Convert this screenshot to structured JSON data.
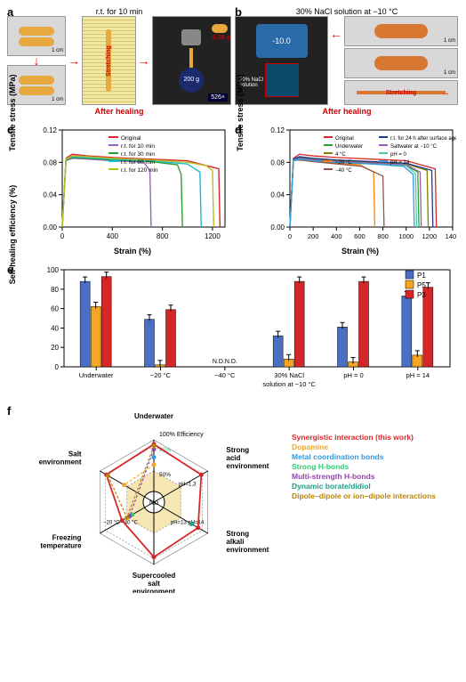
{
  "panelA": {
    "label": "a",
    "title": "r.t. for 10 min",
    "after": "After healing",
    "stretch": "Stretching",
    "weight": "200 g",
    "mass": "0.38 g",
    "ratio": "526×",
    "scale": "1 cm"
  },
  "panelB": {
    "label": "b",
    "title": "30% NaCl solution at −10 °C",
    "after": "After healing",
    "stretch": "Stretching",
    "display": "-10.0",
    "sol": "30% NaCl solution",
    "scale": "1 cm"
  },
  "panelC": {
    "label": "c",
    "ylabel": "Tensile stress (MPa)",
    "xlabel": "Strain (%)",
    "xlim": [
      0,
      1300
    ],
    "xticks": [
      0,
      400,
      800,
      1200
    ],
    "ylim": [
      0,
      0.12
    ],
    "yticks": [
      0.0,
      0.04,
      0.08,
      0.12
    ],
    "series": [
      {
        "name": "Original",
        "color": "#d62728",
        "x": [
          0,
          30,
          80,
          200,
          400,
          700,
          1000,
          1250,
          1260
        ],
        "y": [
          0,
          0.085,
          0.09,
          0.088,
          0.086,
          0.084,
          0.082,
          0.072,
          0
        ]
      },
      {
        "name": "r.t. for 10 min",
        "color": "#9467bd",
        "x": [
          0,
          30,
          80,
          200,
          400,
          650,
          700,
          710
        ],
        "y": [
          0,
          0.082,
          0.085,
          0.084,
          0.082,
          0.08,
          0.07,
          0
        ]
      },
      {
        "name": "r.t. for 30 min",
        "color": "#2ca02c",
        "x": [
          0,
          30,
          80,
          200,
          400,
          700,
          920,
          950,
          960
        ],
        "y": [
          0,
          0.083,
          0.086,
          0.085,
          0.083,
          0.081,
          0.077,
          0.065,
          0
        ]
      },
      {
        "name": "r.t. for 60 min",
        "color": "#17becf",
        "x": [
          0,
          30,
          80,
          200,
          400,
          700,
          1000,
          1100,
          1110
        ],
        "y": [
          0,
          0.084,
          0.087,
          0.086,
          0.084,
          0.082,
          0.078,
          0.068,
          0
        ]
      },
      {
        "name": "r.t. for 120 min",
        "color": "#bcbd22",
        "x": [
          0,
          30,
          80,
          200,
          400,
          700,
          1000,
          1150,
          1200,
          1210
        ],
        "y": [
          0,
          0.084,
          0.088,
          0.087,
          0.085,
          0.083,
          0.08,
          0.076,
          0.07,
          0
        ]
      }
    ]
  },
  "panelD": {
    "label": "d",
    "ylabel": "Tensile stress (MPa)",
    "xlabel": "Strain (%)",
    "xlim": [
      0,
      1400
    ],
    "xticks": [
      0,
      200,
      400,
      600,
      800,
      1000,
      1200,
      1400
    ],
    "ylim": [
      0,
      0.12
    ],
    "yticks": [
      0.0,
      0.04,
      0.08,
      0.12
    ],
    "series": [
      {
        "name": "Original",
        "color": "#d62728",
        "x": [
          0,
          30,
          80,
          200,
          400,
          700,
          1000,
          1250,
          1260
        ],
        "y": [
          0,
          0.085,
          0.09,
          0.088,
          0.086,
          0.084,
          0.082,
          0.072,
          0
        ]
      },
      {
        "name": "Underwater",
        "color": "#2ca02c",
        "x": [
          0,
          30,
          80,
          200,
          400,
          700,
          1000,
          1100,
          1110
        ],
        "y": [
          0,
          0.083,
          0.084,
          0.082,
          0.08,
          0.078,
          0.076,
          0.068,
          0
        ]
      },
      {
        "name": "4 °C",
        "color": "#808000",
        "x": [
          0,
          30,
          80,
          200,
          400,
          700,
          1000,
          1180,
          1190
        ],
        "y": [
          0,
          0.084,
          0.086,
          0.084,
          0.082,
          0.08,
          0.078,
          0.07,
          0
        ]
      },
      {
        "name": "−20 °C",
        "color": "#ff7f0e",
        "x": [
          0,
          30,
          80,
          200,
          400,
          600,
          720,
          730
        ],
        "y": [
          0,
          0.082,
          0.083,
          0.081,
          0.079,
          0.077,
          0.068,
          0
        ]
      },
      {
        "name": "−40 °C",
        "color": "#8c564b",
        "x": [
          0,
          30,
          80,
          200,
          400,
          620,
          800,
          810
        ],
        "y": [
          0,
          0.082,
          0.083,
          0.081,
          0.078,
          0.075,
          0.063,
          0
        ]
      },
      {
        "name": "r.t. for 24 h after surface ageing",
        "color": "#1f3a93",
        "x": [
          0,
          30,
          80,
          200,
          400,
          700,
          1000,
          1220,
          1230
        ],
        "y": [
          0,
          0.084,
          0.087,
          0.085,
          0.083,
          0.081,
          0.079,
          0.07,
          0
        ]
      },
      {
        "name": "Saltwater at −10 °C",
        "color": "#9b59b6",
        "x": [
          0,
          30,
          80,
          200,
          400,
          700,
          1000,
          1120,
          1130
        ],
        "y": [
          0,
          0.083,
          0.085,
          0.083,
          0.081,
          0.079,
          0.077,
          0.068,
          0
        ]
      },
      {
        "name": "pH = 0",
        "color": "#48c9b0",
        "x": [
          0,
          30,
          80,
          200,
          400,
          700,
          1000,
          1080,
          1090
        ],
        "y": [
          0,
          0.082,
          0.084,
          0.082,
          0.08,
          0.078,
          0.076,
          0.066,
          0
        ]
      },
      {
        "name": "pH = 14",
        "color": "#3498db",
        "x": [
          0,
          30,
          80,
          200,
          400,
          700,
          980,
          1060,
          1070
        ],
        "y": [
          0,
          0.083,
          0.084,
          0.082,
          0.08,
          0.078,
          0.075,
          0.065,
          0
        ]
      }
    ]
  },
  "panelE": {
    "label": "e",
    "ylabel": "Self-healing efficiency (%)",
    "ylim": [
      0,
      100
    ],
    "yticks": [
      0,
      20,
      40,
      60,
      80,
      100
    ],
    "legend": [
      {
        "name": "P1",
        "color": "#4a6fc3"
      },
      {
        "name": "P5",
        "color": "#f5a623"
      },
      {
        "name": "P3",
        "color": "#d62728"
      }
    ],
    "groups": [
      {
        "label": "Underwater",
        "v": [
          88,
          62,
          93
        ]
      },
      {
        "label": "−20 °C",
        "v": [
          49,
          2,
          59
        ]
      },
      {
        "label": "−40 °C",
        "v": [
          0,
          0,
          0
        ],
        "nd": true
      },
      {
        "label": "30% NaCl solution at −10 °C",
        "v": [
          32,
          8,
          88
        ]
      },
      {
        "label": "pH = 0",
        "v": [
          41,
          5,
          88
        ]
      },
      {
        "label": "pH = 14",
        "v": [
          73,
          12,
          82
        ]
      }
    ]
  },
  "panelF": {
    "label": "f",
    "axes": [
      "Underwater",
      "Strong acid environment",
      "Strong alkali environment",
      "Supercooled salt environment",
      "Freezing temperature",
      "Salt environment"
    ],
    "axisNotes": [
      "",
      "pH=1,3",
      "pH=13 pH=14",
      "",
      "−20 °C −40 °C",
      ""
    ],
    "rings": [
      "100% Efficiency",
      "90%",
      "50%"
    ],
    "series": [
      {
        "name": "Synergistic interaction (this work)",
        "color": "#d62728",
        "vals": [
          93,
          88,
          82,
          88,
          59,
          88
        ]
      },
      {
        "name": "Dopamine",
        "color": "#f5a623",
        "vals": [
          60,
          0,
          0,
          0,
          0,
          55
        ]
      },
      {
        "name": "Metal coordination bonds",
        "color": "#3498db",
        "vals": [
          72,
          0,
          0,
          0,
          0,
          0
        ]
      },
      {
        "name": "Strong H-bonds",
        "color": "#2ecc71",
        "vals": [
          0,
          0,
          0,
          0,
          40,
          0
        ]
      },
      {
        "name": "Multi-strength H-bonds",
        "color": "#8e44ad",
        "vals": [
          85,
          0,
          0,
          0,
          45,
          0
        ]
      },
      {
        "name": "Dynamic borate/didiol",
        "color": "#16a085",
        "vals": [
          0,
          0,
          70,
          0,
          0,
          0
        ]
      },
      {
        "name": "Dipole–dipole or ion–dipole interactions",
        "color": "#b8860b",
        "vals": [
          90,
          0,
          0,
          0,
          50,
          85
        ]
      }
    ]
  }
}
